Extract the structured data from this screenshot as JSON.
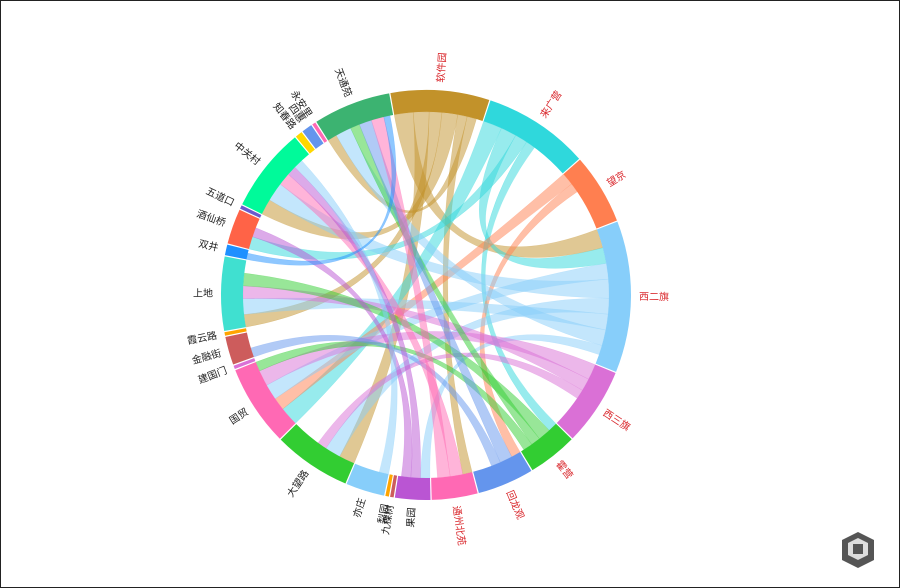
{
  "chart_data": {
    "type": "chord",
    "nodes": [
      {
        "name": "软件园",
        "color": "#c2922a",
        "value": 28
      },
      {
        "name": "来广营",
        "color": "#2fd8dc",
        "value": 30
      },
      {
        "name": "望京",
        "color": "#ff7f50",
        "value": 20
      },
      {
        "name": "西二旗",
        "color": "#87cefa",
        "value": 43
      },
      {
        "name": "西三旗",
        "color": "#da70d6",
        "value": 22
      },
      {
        "name": "霍营",
        "color": "#32cd32",
        "value": 14
      },
      {
        "name": "回龙观",
        "color": "#6495ed",
        "value": 16
      },
      {
        "name": "通州北苑",
        "color": "#ff69b4",
        "value": 13
      },
      {
        "name": "果园",
        "color": "#ba55d3",
        "value": 10
      },
      {
        "name": "九棵树",
        "color": "#cd5c5c",
        "value": 1
      },
      {
        "name": "梨园",
        "color": "#ffa500",
        "value": 1
      },
      {
        "name": "亦庄",
        "color": "#87cefa",
        "value": 11
      },
      {
        "name": "大望路",
        "color": "#32cd32",
        "value": 22
      },
      {
        "name": "国贸",
        "color": "#ff69b4",
        "value": 23
      },
      {
        "name": "建国门",
        "color": "#da70d6",
        "value": 1
      },
      {
        "name": "金融街",
        "color": "#cd5c5c",
        "value": 8
      },
      {
        "name": "霞云路",
        "color": "#ffa500",
        "value": 1
      },
      {
        "name": "上地",
        "color": "#40e0d0",
        "value": 21
      },
      {
        "name": "双井",
        "color": "#1e90ff",
        "value": 3
      },
      {
        "name": "酒仙桥",
        "color": "#ff6347",
        "value": 10
      },
      {
        "name": "五道口",
        "color": "#6a5acd",
        "value": 1
      },
      {
        "name": "中关村",
        "color": "#00fa9a",
        "value": 24
      },
      {
        "name": "知春路",
        "color": "#ffd700",
        "value": 2
      },
      {
        "name": "四惠",
        "color": "#6495ed",
        "value": 3
      },
      {
        "name": "永安里",
        "color": "#ff69b4",
        "value": 1
      },
      {
        "name": "天通苑",
        "color": "#3cb371",
        "value": 22
      }
    ],
    "links": [
      {
        "source": 0,
        "target": 3,
        "value": 6
      },
      {
        "source": 0,
        "target": 12,
        "value": 5
      },
      {
        "source": 0,
        "target": 17,
        "value": 4
      },
      {
        "source": 0,
        "target": 21,
        "value": 5
      },
      {
        "source": 0,
        "target": 7,
        "value": 3
      },
      {
        "source": 0,
        "target": 25,
        "value": 3
      },
      {
        "source": 1,
        "target": 13,
        "value": 6
      },
      {
        "source": 1,
        "target": 3,
        "value": 5
      },
      {
        "source": 1,
        "target": 19,
        "value": 4
      },
      {
        "source": 1,
        "target": 5,
        "value": 3
      },
      {
        "source": 2,
        "target": 13,
        "value": 4
      },
      {
        "source": 2,
        "target": 6,
        "value": 3
      },
      {
        "source": 3,
        "target": 13,
        "value": 5
      },
      {
        "source": 3,
        "target": 21,
        "value": 6
      },
      {
        "source": 3,
        "target": 12,
        "value": 5
      },
      {
        "source": 3,
        "target": 17,
        "value": 5
      },
      {
        "source": 3,
        "target": 25,
        "value": 5
      },
      {
        "source": 3,
        "target": 8,
        "value": 3
      },
      {
        "source": 4,
        "target": 13,
        "value": 5
      },
      {
        "source": 4,
        "target": 17,
        "value": 4
      },
      {
        "source": 4,
        "target": 12,
        "value": 3
      },
      {
        "source": 5,
        "target": 17,
        "value": 4
      },
      {
        "source": 5,
        "target": 25,
        "value": 3
      },
      {
        "source": 5,
        "target": 13,
        "value": 3
      },
      {
        "source": 6,
        "target": 25,
        "value": 4
      },
      {
        "source": 6,
        "target": 15,
        "value": 3
      },
      {
        "source": 7,
        "target": 21,
        "value": 4
      },
      {
        "source": 7,
        "target": 25,
        "value": 4
      },
      {
        "source": 8,
        "target": 21,
        "value": 3
      },
      {
        "source": 8,
        "target": 19,
        "value": 3
      },
      {
        "source": 11,
        "target": 21,
        "value": 3
      },
      {
        "source": 18,
        "target": 25,
        "value": 2
      }
    ]
  }
}
